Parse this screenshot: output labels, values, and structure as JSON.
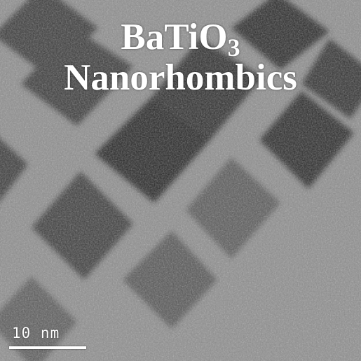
{
  "figure": {
    "title_prefix": "BaTiO",
    "title_subscript": "3",
    "title_line2": "Nanorhombics",
    "scale_bar_label": "10 nm"
  },
  "colors": {
    "background_gray": "#8c8c8c",
    "particle_dark": "#2e2e2e",
    "text": "#ffffff"
  }
}
